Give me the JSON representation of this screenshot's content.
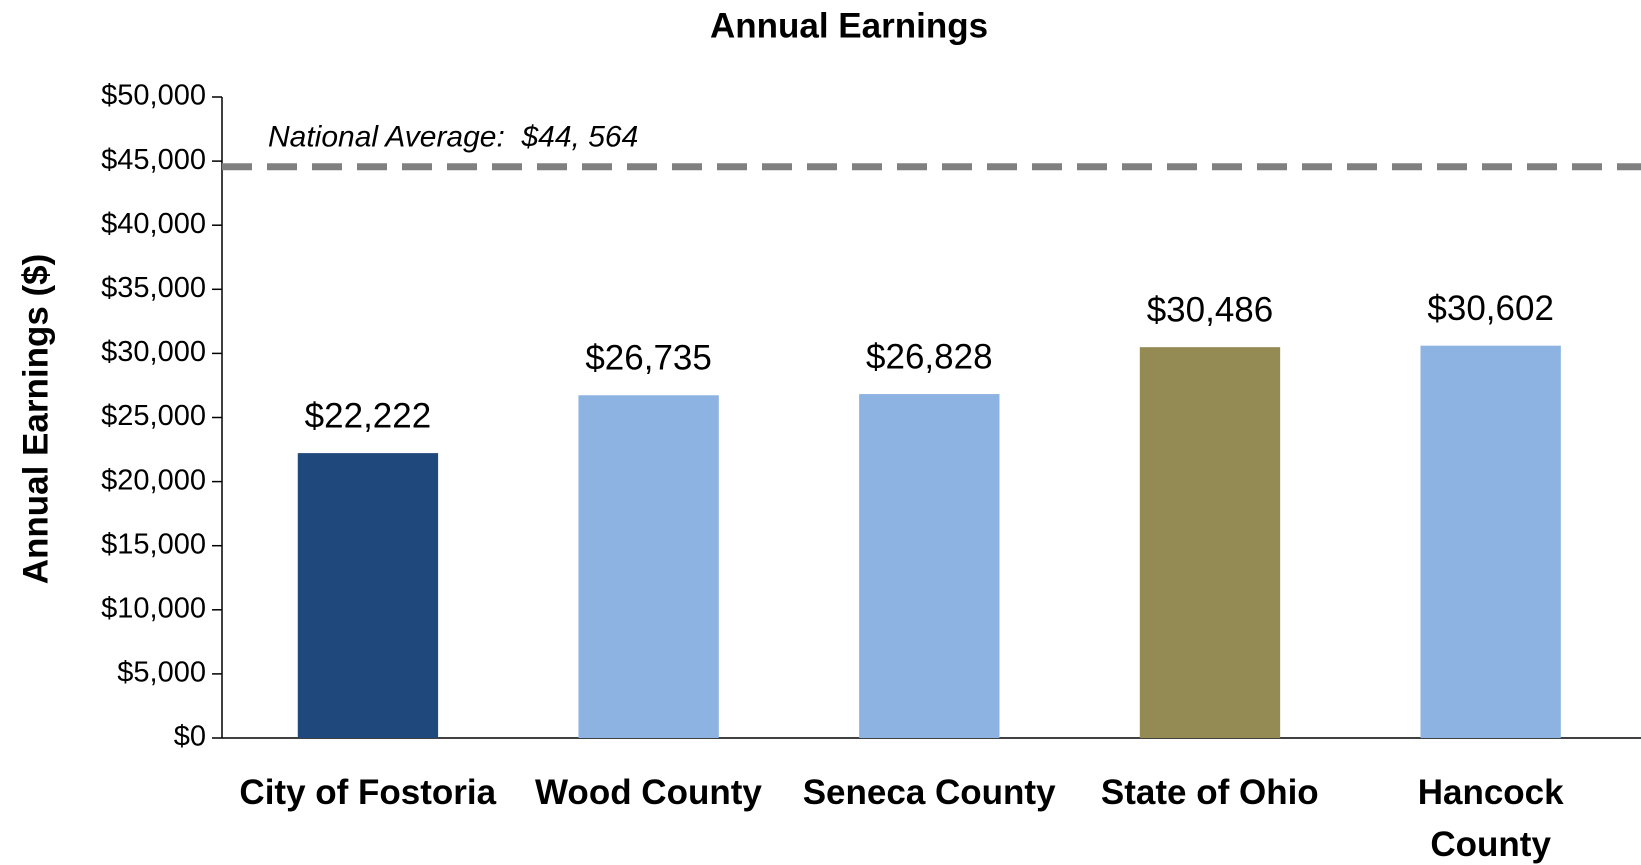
{
  "chart_data": {
    "type": "bar",
    "title": "Annual Earnings",
    "y_label": "Annual Earnings ($)",
    "categories": [
      "City of Fostoria",
      "Wood County",
      "Seneca County",
      "State of Ohio",
      "Hancock County"
    ],
    "values": [
      22222,
      26735,
      26828,
      30486,
      30602
    ],
    "value_labels": [
      "$22,222",
      "$26,735",
      "$26,828",
      "$30,486",
      "$30,602"
    ],
    "colors": [
      "#1f497d",
      "#8db3e2",
      "#8db3e2",
      "#948a54",
      "#8db3e2"
    ],
    "ylim": [
      0,
      50000
    ],
    "yticks": [
      {
        "value": 0,
        "label": "$0"
      },
      {
        "value": 5000,
        "label": "$5,000"
      },
      {
        "value": 10000,
        "label": "$10,000"
      },
      {
        "value": 15000,
        "label": "$15,000"
      },
      {
        "value": 20000,
        "label": "$20,000"
      },
      {
        "value": 25000,
        "label": "$25,000"
      },
      {
        "value": 30000,
        "label": "$30,000"
      },
      {
        "value": 35000,
        "label": "$35,000"
      },
      {
        "value": 40000,
        "label": "$40,000"
      },
      {
        "value": 45000,
        "label": "$45,000"
      },
      {
        "value": 50000,
        "label": "$50,000"
      }
    ],
    "grid": false,
    "reference_line": {
      "value": 44564,
      "label": "National Average:  $44, 564",
      "color": "#808080"
    }
  }
}
